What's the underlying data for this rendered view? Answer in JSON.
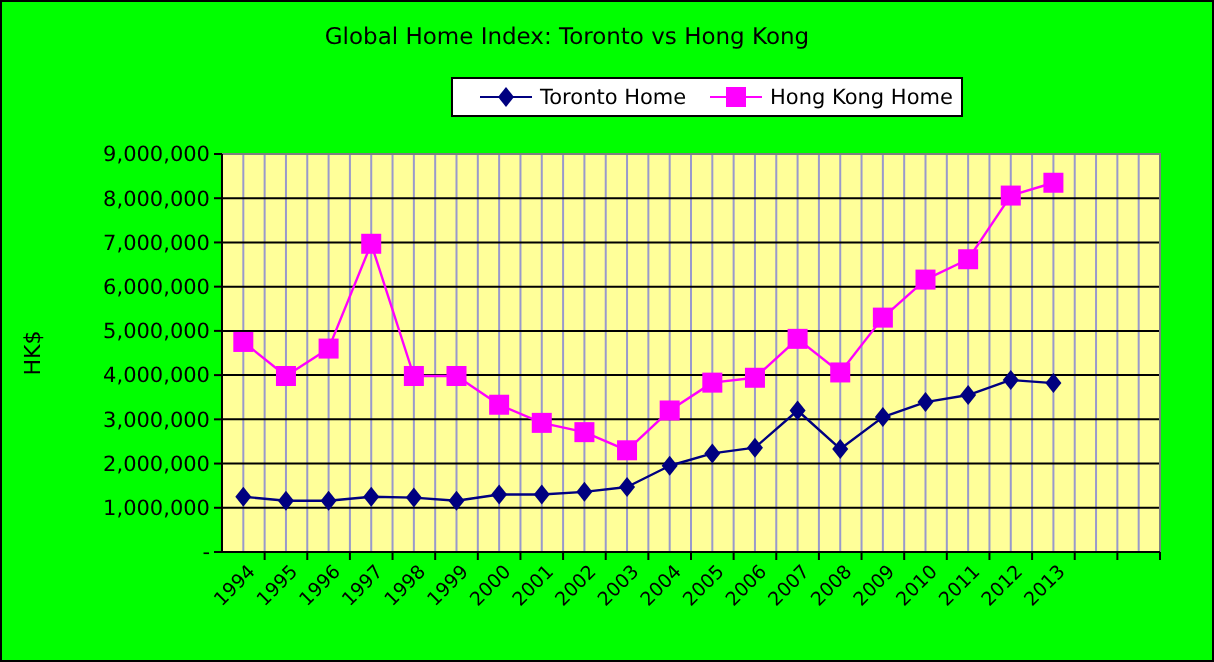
{
  "chart_data": {
    "type": "line",
    "title": "Global Home Index: Toronto vs Hong Kong",
    "ylabel": "HK$",
    "categories": [
      "1994",
      "1995",
      "1996",
      "1997",
      "1998",
      "1999",
      "2000",
      "2001",
      "2002",
      "2003",
      "2004",
      "2005",
      "2006",
      "2007",
      "2008",
      "2009",
      "2010",
      "2011",
      "2012",
      "2013",
      null,
      null
    ],
    "series": [
      {
        "name": "Toronto Home",
        "color": "#000080",
        "marker": "diamond",
        "values": [
          1250000,
          1160000,
          1160000,
          1250000,
          1230000,
          1160000,
          1300000,
          1300000,
          1360000,
          1470000,
          1950000,
          2230000,
          2360000,
          3200000,
          2330000,
          3050000,
          3390000,
          3550000,
          3890000,
          3820000,
          null,
          null
        ]
      },
      {
        "name": "Hong Kong Home",
        "color": "#ff00ff",
        "marker": "square",
        "values": [
          4750000,
          3980000,
          4600000,
          6970000,
          3980000,
          3980000,
          3330000,
          2920000,
          2710000,
          2300000,
          3200000,
          3830000,
          3940000,
          4820000,
          4060000,
          5300000,
          6160000,
          6620000,
          8060000,
          8350000,
          null,
          null
        ]
      }
    ],
    "ylim": [
      0,
      9000000
    ],
    "yticks": [
      {
        "value": 0,
        "label": "-"
      },
      {
        "value": 1000000,
        "label": "1,000,000"
      },
      {
        "value": 2000000,
        "label": "2,000,000"
      },
      {
        "value": 3000000,
        "label": "3,000,000"
      },
      {
        "value": 4000000,
        "label": "4,000,000"
      },
      {
        "value": 5000000,
        "label": "5,000,000"
      },
      {
        "value": 6000000,
        "label": "6,000,000"
      },
      {
        "value": 7000000,
        "label": "7,000,000"
      },
      {
        "value": 8000000,
        "label": "8,000,000"
      },
      {
        "value": 9000000,
        "label": "9,000,000"
      }
    ],
    "grid": true,
    "legend": "top"
  }
}
